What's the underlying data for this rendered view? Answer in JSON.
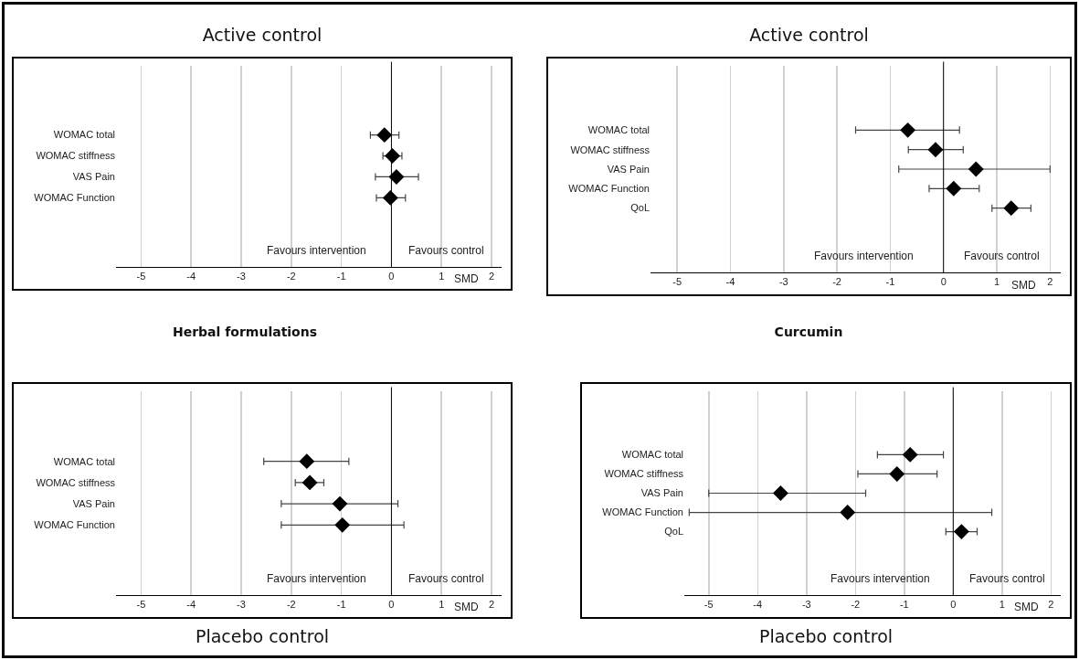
{
  "chart_data": [
    {
      "type": "scatter",
      "orientation": "horizontal",
      "title": "Active control",
      "xlabel": "SMD",
      "annotations": [
        "Favours intervention",
        "Favours control"
      ],
      "categories": [
        "WOMAC total",
        "WOMAC stiffness",
        "VAS Pain",
        "WOMAC Function"
      ],
      "series": [
        {
          "color": "#000000",
          "values": [
            -0.14,
            0.02,
            0.1,
            -0.02
          ],
          "errors": [
            [
              -0.42,
              0.15
            ],
            [
              -0.17,
              0.21
            ],
            [
              -0.32,
              0.54
            ],
            [
              -0.3,
              0.28
            ]
          ]
        }
      ],
      "xlim": [
        -5.5,
        2.2
      ],
      "xticks": [
        -5,
        -4,
        -3,
        -2,
        -1,
        0,
        1,
        2
      ],
      "grid": "x",
      "marker": "diamond",
      "ref_lines": [
        {
          "axis": "x",
          "value": 0,
          "color": "#000000"
        }
      ]
    },
    {
      "type": "scatter",
      "orientation": "horizontal",
      "title": "Active control",
      "xlabel": "SMD",
      "annotations": [
        "Favours intervention",
        "Favours control"
      ],
      "categories": [
        "WOMAC total",
        "WOMAC stiffness",
        "VAS Pain",
        "WOMAC Function",
        "QoL"
      ],
      "series": [
        {
          "color": "#000000",
          "values": [
            -0.67,
            -0.15,
            0.61,
            0.19,
            1.27
          ],
          "errors": [
            [
              -1.65,
              0.3
            ],
            [
              -0.66,
              0.37
            ],
            [
              -0.84,
              2.0
            ],
            [
              -0.27,
              0.67
            ],
            [
              0.91,
              1.64
            ]
          ]
        }
      ],
      "xlim": [
        -5.5,
        2.2
      ],
      "xticks": [
        -5,
        -4,
        -3,
        -2,
        -1,
        0,
        1,
        2
      ],
      "grid": "x",
      "marker": "diamond",
      "ref_lines": [
        {
          "axis": "x",
          "value": 0,
          "color": "#000000"
        }
      ]
    },
    {
      "type": "scatter",
      "orientation": "horizontal",
      "title": "Placebo control",
      "subtitle": "Herbal formulations",
      "xlabel": "SMD",
      "annotations": [
        "Favours intervention",
        "Favours control"
      ],
      "categories": [
        "WOMAC total",
        "WOMAC stiffness",
        "VAS Pain",
        "WOMAC Function"
      ],
      "series": [
        {
          "color": "#000000",
          "values": [
            -1.69,
            -1.63,
            -1.03,
            -0.98
          ],
          "errors": [
            [
              -2.55,
              -0.85
            ],
            [
              -1.92,
              -1.35
            ],
            [
              -2.2,
              0.13
            ],
            [
              -2.2,
              0.25
            ]
          ]
        }
      ],
      "xlim": [
        -5.5,
        2.2
      ],
      "xticks": [
        -5,
        -4,
        -3,
        -2,
        -1,
        0,
        1,
        2
      ],
      "grid": "x",
      "marker": "diamond",
      "ref_lines": [
        {
          "axis": "x",
          "value": 0,
          "color": "#000000"
        }
      ]
    },
    {
      "type": "scatter",
      "orientation": "horizontal",
      "title": "Placebo control",
      "subtitle": "Curcumin",
      "xlabel": "SMD",
      "annotations": [
        "Favours intervention",
        "Favours control"
      ],
      "categories": [
        "WOMAC total",
        "WOMAC stiffness",
        "VAS Pain",
        "WOMAC Function",
        "QoL"
      ],
      "series": [
        {
          "color": "#000000",
          "values": [
            -0.88,
            -1.15,
            -3.53,
            -2.16,
            0.17
          ],
          "errors": [
            [
              -1.55,
              -0.2
            ],
            [
              -1.95,
              -0.33
            ],
            [
              -5.0,
              -1.79
            ],
            [
              -5.4,
              0.79
            ],
            [
              -0.15,
              0.49
            ]
          ]
        }
      ],
      "xlim": [
        -5.5,
        2.2
      ],
      "xticks": [
        -5,
        -4,
        -3,
        -2,
        -1,
        0,
        1,
        2
      ],
      "grid": "x",
      "marker": "diamond",
      "ref_lines": [
        {
          "axis": "x",
          "value": 0,
          "color": "#000000"
        }
      ]
    }
  ]
}
